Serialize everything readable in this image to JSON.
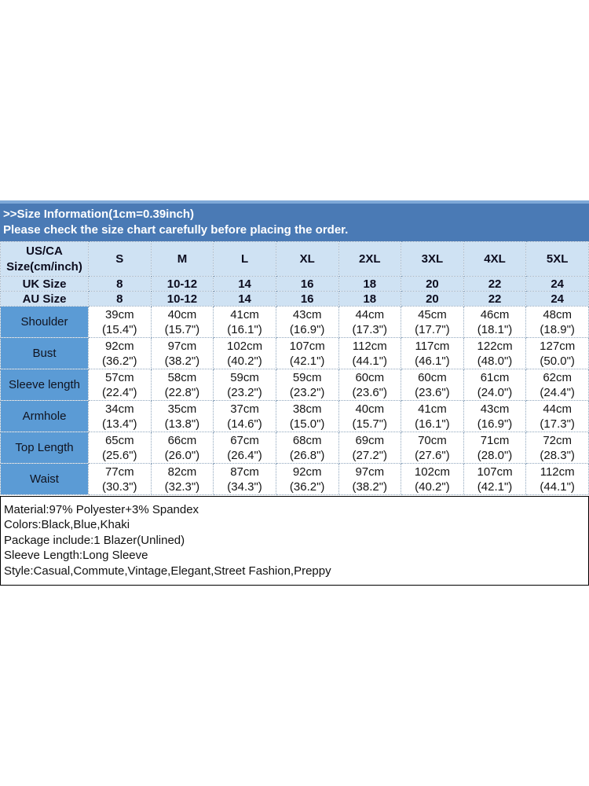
{
  "colors": {
    "banner_blue": "#4a7ab5",
    "banner_top_strip": "#7ea9d8",
    "label_column_blue": "#5b9bd5",
    "header_light_blue": "#cfe2f3",
    "info_border": "#000000"
  },
  "banner": {
    "title": ">>Size Information(1cm=0.39inch)",
    "subtitle": "Please check the size chart carefully before placing the order."
  },
  "size_chart": {
    "corner": {
      "line1": "US/CA",
      "line2": "Size(cm/inch)"
    },
    "sizes": [
      "S",
      "M",
      "L",
      "XL",
      "2XL",
      "3XL",
      "4XL",
      "5XL"
    ],
    "uk": {
      "label": "UK Size",
      "values": [
        "8",
        "10-12",
        "14",
        "16",
        "18",
        "20",
        "22",
        "24"
      ]
    },
    "au": {
      "label": "AU Size",
      "values": [
        "8",
        "10-12",
        "14",
        "16",
        "18",
        "20",
        "22",
        "24"
      ]
    },
    "rows": [
      {
        "label": "Shoulder",
        "values": [
          {
            "cm": "39cm",
            "inch": "(15.4\")"
          },
          {
            "cm": "40cm",
            "inch": "(15.7\")"
          },
          {
            "cm": "41cm",
            "inch": "(16.1\")"
          },
          {
            "cm": "43cm",
            "inch": "(16.9\")"
          },
          {
            "cm": "44cm",
            "inch": "(17.3\")"
          },
          {
            "cm": "45cm",
            "inch": "(17.7\")"
          },
          {
            "cm": "46cm",
            "inch": "(18.1\")"
          },
          {
            "cm": "48cm",
            "inch": "(18.9\")"
          }
        ]
      },
      {
        "label": "Bust",
        "values": [
          {
            "cm": "92cm",
            "inch": "(36.2\")"
          },
          {
            "cm": "97cm",
            "inch": "(38.2\")"
          },
          {
            "cm": "102cm",
            "inch": "(40.2\")"
          },
          {
            "cm": "107cm",
            "inch": "(42.1\")"
          },
          {
            "cm": "112cm",
            "inch": "(44.1\")"
          },
          {
            "cm": "117cm",
            "inch": "(46.1\")"
          },
          {
            "cm": "122cm",
            "inch": "(48.0\")"
          },
          {
            "cm": "127cm",
            "inch": "(50.0\")"
          }
        ]
      },
      {
        "label": "Sleeve length",
        "values": [
          {
            "cm": "57cm",
            "inch": "(22.4\")"
          },
          {
            "cm": "58cm",
            "inch": "(22.8\")"
          },
          {
            "cm": "59cm",
            "inch": "(23.2\")"
          },
          {
            "cm": "59cm",
            "inch": "(23.2\")"
          },
          {
            "cm": "60cm",
            "inch": "(23.6\")"
          },
          {
            "cm": "60cm",
            "inch": "(23.6\")"
          },
          {
            "cm": "61cm",
            "inch": "(24.0\")"
          },
          {
            "cm": "62cm",
            "inch": "(24.4\")"
          }
        ]
      },
      {
        "label": "Armhole",
        "values": [
          {
            "cm": "34cm",
            "inch": "(13.4\")"
          },
          {
            "cm": "35cm",
            "inch": "(13.8\")"
          },
          {
            "cm": "37cm",
            "inch": "(14.6\")"
          },
          {
            "cm": "38cm",
            "inch": "(15.0\")"
          },
          {
            "cm": "40cm",
            "inch": "(15.7\")"
          },
          {
            "cm": "41cm",
            "inch": "(16.1\")"
          },
          {
            "cm": "43cm",
            "inch": "(16.9\")"
          },
          {
            "cm": "44cm",
            "inch": "(17.3\")"
          }
        ]
      },
      {
        "label": "Top Length",
        "values": [
          {
            "cm": "65cm",
            "inch": "(25.6\")"
          },
          {
            "cm": "66cm",
            "inch": "(26.0\")"
          },
          {
            "cm": "67cm",
            "inch": "(26.4\")"
          },
          {
            "cm": "68cm",
            "inch": "(26.8\")"
          },
          {
            "cm": "69cm",
            "inch": "(27.2\")"
          },
          {
            "cm": "70cm",
            "inch": "(27.6\")"
          },
          {
            "cm": "71cm",
            "inch": "(28.0\")"
          },
          {
            "cm": "72cm",
            "inch": "(28.3\")"
          }
        ]
      },
      {
        "label": "Waist",
        "values": [
          {
            "cm": "77cm",
            "inch": "(30.3\")"
          },
          {
            "cm": "82cm",
            "inch": "(32.3\")"
          },
          {
            "cm": "87cm",
            "inch": "(34.3\")"
          },
          {
            "cm": "92cm",
            "inch": "(36.2\")"
          },
          {
            "cm": "97cm",
            "inch": "(38.2\")"
          },
          {
            "cm": "102cm",
            "inch": "(40.2\")"
          },
          {
            "cm": "107cm",
            "inch": "(42.1\")"
          },
          {
            "cm": "112cm",
            "inch": "(44.1\")"
          }
        ]
      }
    ]
  },
  "product_info": {
    "lines": [
      "Material:97% Polyester+3% Spandex",
      "Colors:Black,Blue,Khaki",
      "Package include:1 Blazer(Unlined)",
      "Sleeve Length:Long Sleeve",
      "Style:Casual,Commute,Vintage,Elegant,Street Fashion,Preppy"
    ]
  }
}
